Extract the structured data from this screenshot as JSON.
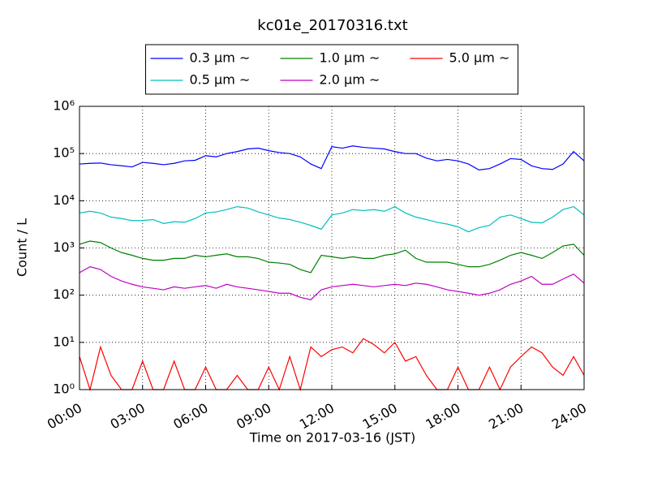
{
  "chart_data": {
    "type": "line",
    "title": "kc01e_20170316.txt",
    "xlabel": "Time on 2017-03-16 (JST)",
    "ylabel": "Count / L",
    "log_y": true,
    "grid": true,
    "legend": "upper center",
    "xlim": [
      0,
      24
    ],
    "ylim": [
      1,
      1000000
    ],
    "xticks": [
      {
        "value": 0,
        "label": "00:00"
      },
      {
        "value": 3,
        "label": "03:00"
      },
      {
        "value": 6,
        "label": "06:00"
      },
      {
        "value": 9,
        "label": "09:00"
      },
      {
        "value": 12,
        "label": "12:00"
      },
      {
        "value": 15,
        "label": "15:00"
      },
      {
        "value": 18,
        "label": "18:00"
      },
      {
        "value": 21,
        "label": "21:00"
      },
      {
        "value": 24,
        "label": "24:00"
      }
    ],
    "yticks": [
      {
        "value": 1,
        "label": "10⁰"
      },
      {
        "value": 10,
        "label": "10¹"
      },
      {
        "value": 100,
        "label": "10²"
      },
      {
        "value": 1000,
        "label": "10³"
      },
      {
        "value": 10000,
        "label": "10⁴"
      },
      {
        "value": 100000,
        "label": "10⁵"
      },
      {
        "value": 1000000,
        "label": "10⁶"
      }
    ],
    "x": [
      0,
      0.5,
      1,
      1.5,
      2,
      2.5,
      3,
      3.5,
      4,
      4.5,
      5,
      5.5,
      6,
      6.5,
      7,
      7.5,
      8,
      8.5,
      9,
      9.5,
      10,
      10.5,
      11,
      11.5,
      12,
      12.5,
      13,
      13.5,
      14,
      14.5,
      15,
      15.5,
      16,
      16.5,
      17,
      17.5,
      18,
      18.5,
      19,
      19.5,
      20,
      20.5,
      21,
      21.5,
      22,
      22.5,
      23,
      23.5,
      24
    ],
    "series": [
      {
        "name": "0.3 μm ∼",
        "color": "#0000ff",
        "values": [
          60000,
          62000,
          63000,
          58000,
          55000,
          52000,
          65000,
          62000,
          58000,
          62000,
          70000,
          72000,
          90000,
          85000,
          100000,
          110000,
          125000,
          130000,
          115000,
          105000,
          100000,
          85000,
          60000,
          48000,
          140000,
          130000,
          145000,
          135000,
          130000,
          125000,
          110000,
          100000,
          100000,
          80000,
          70000,
          75000,
          70000,
          60000,
          45000,
          48000,
          60000,
          78000,
          75000,
          55000,
          48000,
          46000,
          60000,
          110000,
          70000
        ]
      },
      {
        "name": "0.5 μm ∼",
        "color": "#00bfbf",
        "values": [
          5500,
          6000,
          5500,
          4500,
          4200,
          3800,
          3800,
          4000,
          3300,
          3600,
          3500,
          4200,
          5500,
          5800,
          6500,
          7500,
          7000,
          5800,
          5000,
          4300,
          4000,
          3500,
          3000,
          2500,
          5000,
          5500,
          6500,
          6200,
          6500,
          6000,
          7500,
          5500,
          4500,
          4000,
          3500,
          3200,
          2800,
          2200,
          2700,
          3000,
          4500,
          5000,
          4200,
          3500,
          3400,
          4500,
          6500,
          7500,
          5000
        ]
      },
      {
        "name": "1.0 μm ∼",
        "color": "#008000",
        "values": [
          1200,
          1400,
          1300,
          1000,
          800,
          700,
          600,
          550,
          550,
          600,
          600,
          700,
          650,
          700,
          750,
          650,
          650,
          600,
          500,
          480,
          450,
          350,
          300,
          700,
          650,
          600,
          650,
          600,
          600,
          700,
          750,
          900,
          600,
          500,
          500,
          500,
          450,
          400,
          400,
          450,
          550,
          700,
          800,
          700,
          600,
          800,
          1100,
          1200,
          700
        ]
      },
      {
        "name": "2.0 μm ∼",
        "color": "#bf00bf",
        "values": [
          300,
          400,
          350,
          250,
          200,
          170,
          150,
          140,
          130,
          150,
          140,
          150,
          160,
          140,
          170,
          150,
          140,
          130,
          120,
          110,
          110,
          90,
          80,
          130,
          150,
          160,
          170,
          160,
          150,
          160,
          170,
          160,
          180,
          170,
          150,
          130,
          120,
          110,
          100,
          110,
          130,
          170,
          200,
          250,
          170,
          170,
          220,
          280,
          180
        ]
      },
      {
        "name": "5.0 μm ∼",
        "color": "#ff0000",
        "values": [
          5,
          1,
          8,
          2,
          1,
          1,
          4,
          1,
          1,
          4,
          1,
          1,
          3,
          1,
          1,
          2,
          1,
          1,
          3,
          1,
          5,
          1,
          8,
          5,
          7,
          8,
          6,
          12,
          9,
          6,
          10,
          4,
          5,
          2,
          1,
          1,
          3,
          1,
          1,
          3,
          1,
          3,
          5,
          8,
          6,
          3,
          2,
          5,
          2
        ]
      }
    ]
  }
}
